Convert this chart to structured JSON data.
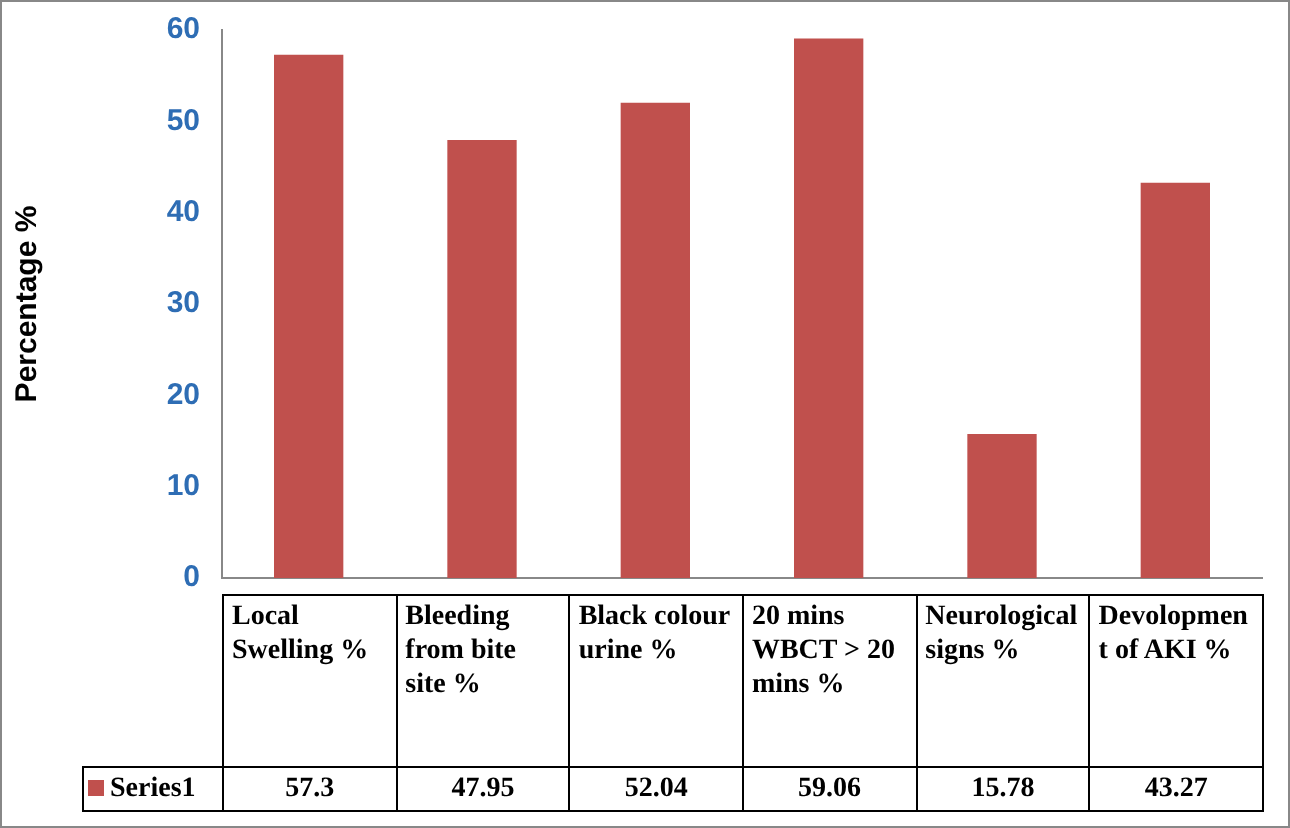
{
  "chart_data": {
    "type": "bar",
    "ylabel": "Percentage %",
    "categories": [
      "Local Swelling %",
      "Bleeding from bite site %",
      "Black colour urine %",
      "20 mins WBCT > 20 mins %",
      "Neurological signs %",
      "Devolopment of AKI %"
    ],
    "series": [
      {
        "name": "Series1",
        "color": "#c0504d",
        "values": [
          57.3,
          47.95,
          52.04,
          59.06,
          15.78,
          43.27
        ]
      }
    ],
    "ylim": [
      0,
      60
    ],
    "yticks": [
      0,
      10,
      20,
      30,
      40,
      50,
      60
    ],
    "grid": false,
    "legend": "bottom",
    "data_labels": true
  }
}
